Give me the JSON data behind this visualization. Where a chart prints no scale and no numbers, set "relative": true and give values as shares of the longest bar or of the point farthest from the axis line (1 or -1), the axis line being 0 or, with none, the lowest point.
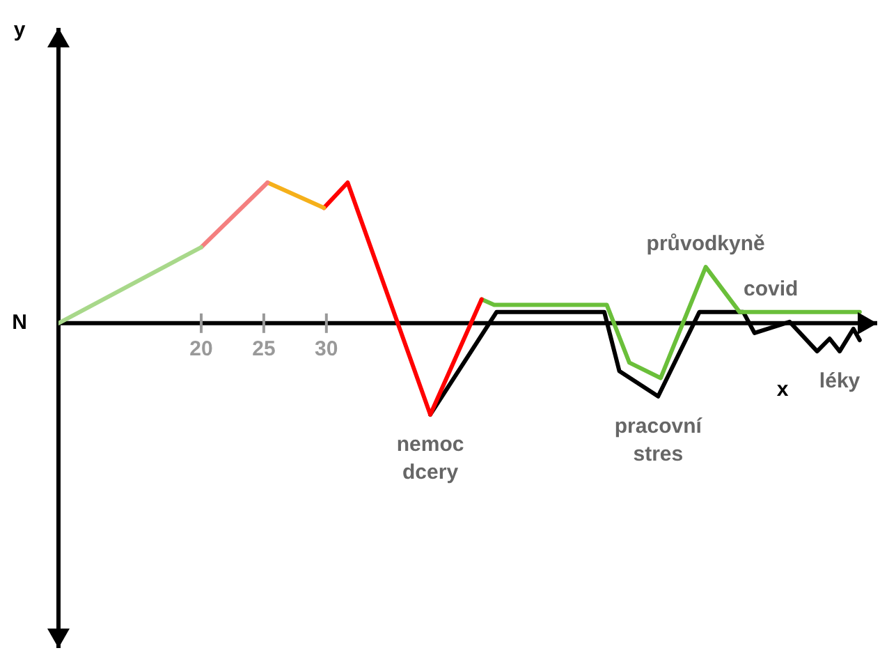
{
  "chart_data": {
    "type": "line",
    "relative": true,
    "xlabel": "x",
    "xlim": [
      8.6,
      74
    ],
    "xticks": [
      20,
      25,
      30
    ],
    "grid": false,
    "legend": false,
    "marker": "none",
    "line_style": "solid",
    "series": [
      {
        "color": "#a8d88a",
        "x": [
          8.6,
          20
        ],
        "values": [
          0,
          0.54
        ]
      },
      {
        "color": "#f47f7f",
        "x": [
          20,
          25.3
        ],
        "values": [
          0.54,
          1
        ]
      },
      {
        "color": "#f5b01a",
        "x": [
          25.3,
          29.8
        ],
        "values": [
          1,
          0.82
        ]
      },
      {
        "color": "#ff0000",
        "x": [
          29.8,
          31.7,
          38.3,
          42.4
        ],
        "values": [
          0.82,
          1,
          -0.65,
          0.17
        ]
      },
      {
        "color": "#6abf3a",
        "x": [
          42.4,
          43.4,
          52.4,
          54.2,
          56.7,
          60.3,
          63,
          72.6
        ],
        "values": [
          0.17,
          0.13,
          0.13,
          -0.28,
          -0.39,
          0.4,
          0.08,
          0.08
        ]
      },
      {
        "color": "#000000",
        "x": [
          38.3,
          43.6,
          52.2,
          53.4,
          56.5,
          59.8,
          63.3,
          64.2,
          67,
          69.2,
          70.2,
          71,
          72.1,
          72.6
        ],
        "values": [
          -0.65,
          0.08,
          0.08,
          -0.34,
          -0.52,
          0.08,
          0.08,
          -0.07,
          0.01,
          -0.2,
          -0.11,
          -0.2,
          -0.04,
          -0.12
        ]
      }
    ],
    "annotations": [
      "y",
      "N",
      {
        "text": "nemoc dcery",
        "x": 38.3,
        "y": -0.65
      },
      {
        "text": "pracovní stres",
        "x": 56.5,
        "y": -0.52
      },
      {
        "text": "průvodkyně",
        "x": 60.3,
        "y": 0.4
      },
      {
        "text": "covid",
        "x": 65.5,
        "y": 0.08
      },
      {
        "text": "léky",
        "x": 71,
        "y": -0.2
      }
    ]
  }
}
